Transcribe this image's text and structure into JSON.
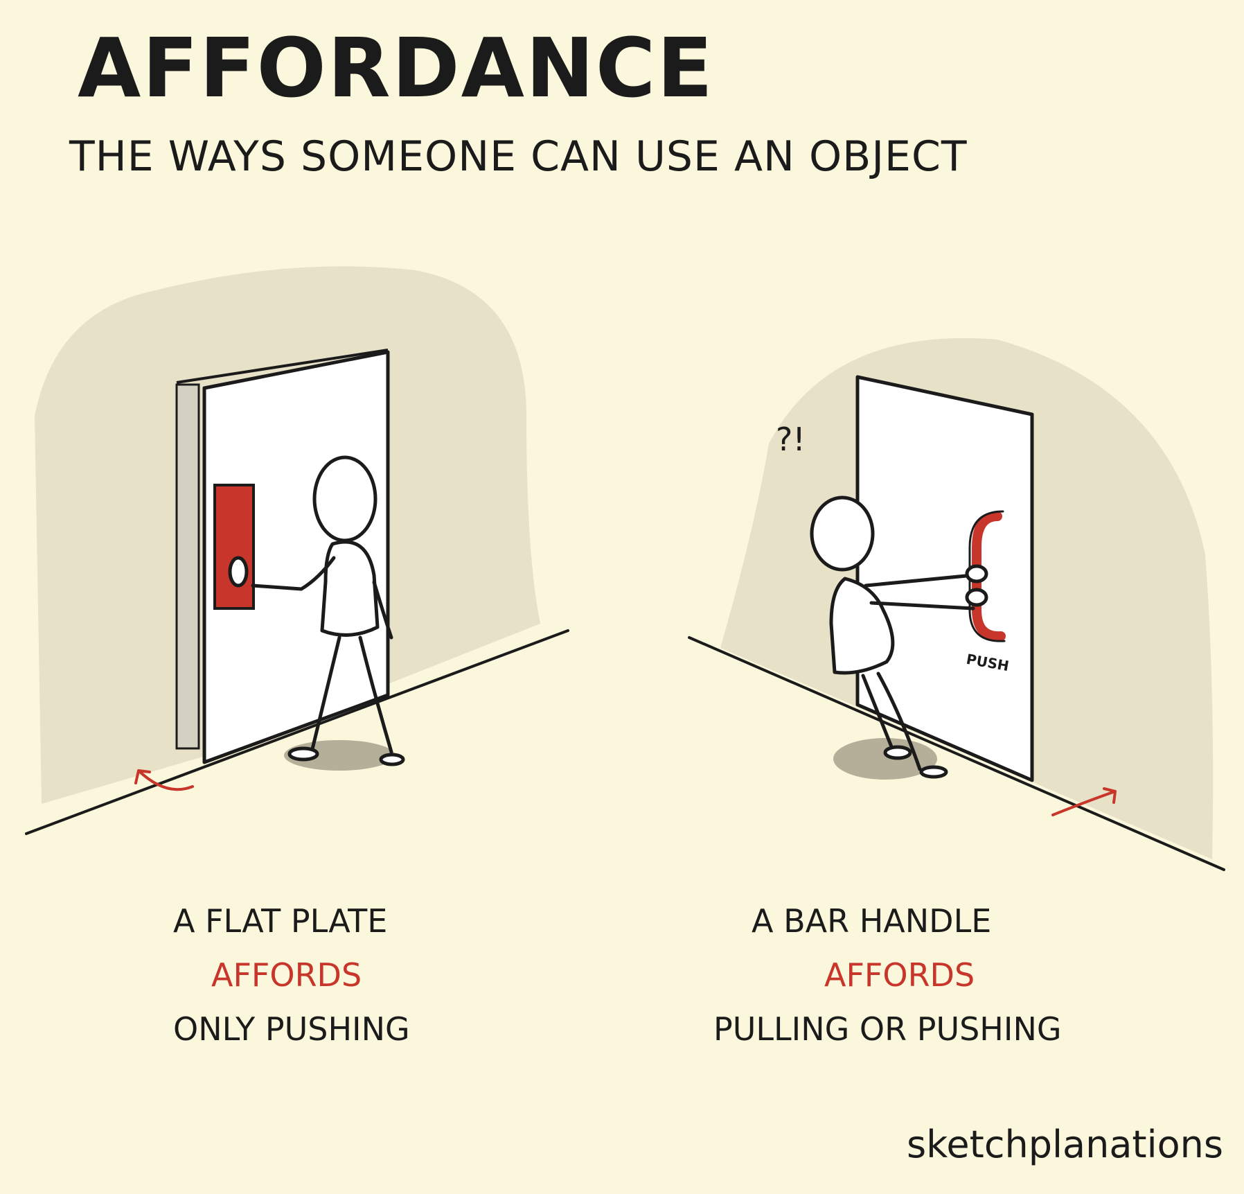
{
  "title": "AFFORDANCE",
  "subtitle": "THE WAYS SOMEONE CAN USE AN OBJECT",
  "left_panel": {
    "line1": "A FLAT PLATE",
    "line2": "AFFORDS",
    "line3": "ONLY PUSHING"
  },
  "right_panel": {
    "line1": "A BAR HANDLE",
    "line2": "AFFORDS",
    "line3": "PULLING OR PUSHING",
    "door_sign": "PUSH",
    "exclamation": "?!"
  },
  "brand": "sketchplanations",
  "colors": {
    "background": "#fbf7dc",
    "wall": "#e7e1c8",
    "accent": "#c8352a",
    "ink": "#1b1b1b",
    "shadow": "#b5ae99"
  }
}
